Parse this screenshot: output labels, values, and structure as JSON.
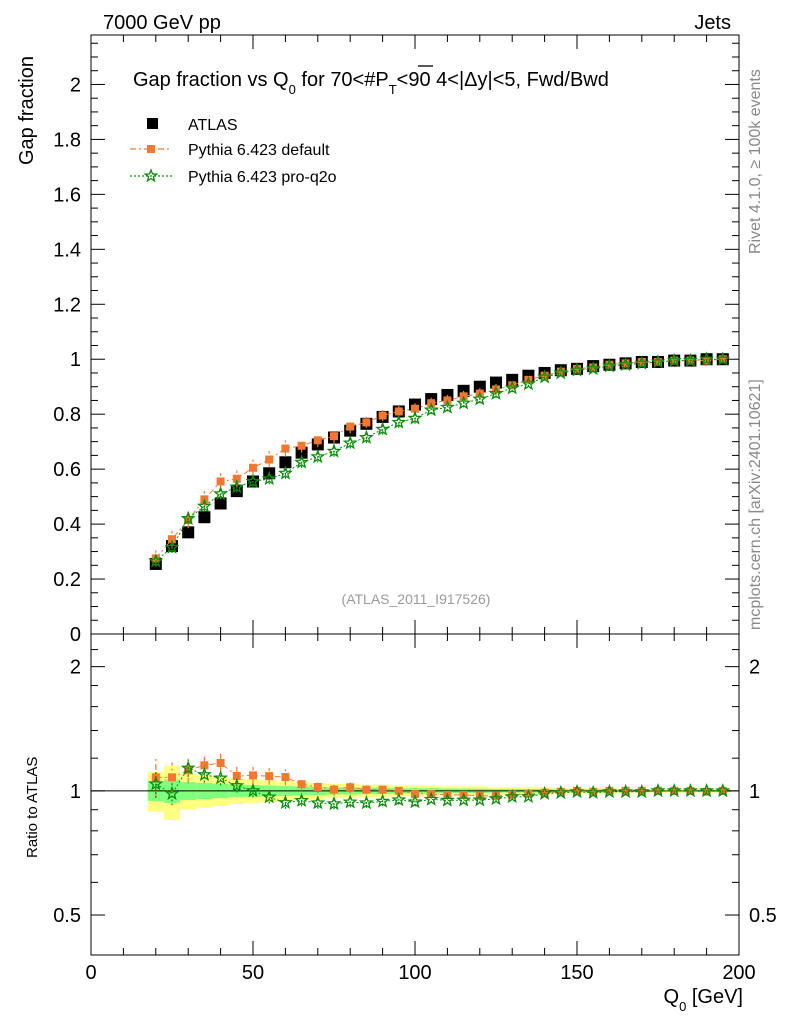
{
  "header": {
    "left": "7000 GeV pp",
    "right": "Jets"
  },
  "side_labels": {
    "rivet": "Rivet 4.1.0, ≥ 100k events",
    "mcplots": "mcplots.cern.ch [arXiv:2401.10621]"
  },
  "colors": {
    "atlas": "#000000",
    "default": "#f07830",
    "proq2o": "#0a8c0a",
    "band_yellow": "#ffff80",
    "band_green": "#80ff80"
  },
  "chart_data": [
    {
      "type": "scatter",
      "panel": "main",
      "title_parts": {
        "before": "Gap fraction vs Q",
        "sub0": "0",
        "mid": " for 70<#",
        "p": "P",
        "subT": "T",
        "after": "<90  4<|Δy|<5, Fwd/Bwd"
      },
      "ylabel": "Gap fraction",
      "xlabel": "Q",
      "xlabel_sub": "0",
      "xlabel_unit": " [GeV]",
      "watermark": "(ATLAS_2011_I917526)",
      "xlim": [
        0,
        200
      ],
      "ylim": [
        0,
        2.18
      ],
      "yticks": [
        "0",
        "0.2",
        "0.4",
        "0.6",
        "0.8",
        "1",
        "1.2",
        "1.4",
        "1.6",
        "1.8",
        "2"
      ],
      "xticks": [
        "0",
        "50",
        "100",
        "150",
        "200"
      ],
      "legend": [
        "ATLAS",
        "Pythia 6.423 default",
        "Pythia 6.423 pro-q2o"
      ],
      "x": [
        20,
        25,
        30,
        35,
        40,
        45,
        50,
        55,
        60,
        65,
        70,
        75,
        80,
        85,
        90,
        95,
        100,
        105,
        110,
        115,
        120,
        125,
        130,
        135,
        140,
        145,
        150,
        155,
        160,
        165,
        170,
        175,
        180,
        185,
        190,
        195
      ],
      "series": [
        {
          "name": "ATLAS",
          "values": [
            0.255,
            0.32,
            0.37,
            0.425,
            0.475,
            0.52,
            0.555,
            0.585,
            0.625,
            0.66,
            0.69,
            0.715,
            0.74,
            0.765,
            0.79,
            0.81,
            0.835,
            0.855,
            0.87,
            0.885,
            0.9,
            0.915,
            0.925,
            0.94,
            0.95,
            0.96,
            0.965,
            0.975,
            0.98,
            0.985,
            0.99,
            0.99,
            0.995,
            0.995,
            1.0,
            1.0
          ],
          "err": [
            0.01,
            0.01,
            0.01,
            0.01,
            0.01,
            0.01,
            0.01,
            0.01,
            0.01,
            0.01,
            0.01,
            0.01,
            0.01,
            0.01,
            0.01,
            0.01,
            0.01,
            0.01,
            0.01,
            0.01,
            0.01,
            0.01,
            0.01,
            0.01,
            0.01,
            0.01,
            0.01,
            0.01,
            0.01,
            0.01,
            0.01,
            0.01,
            0.01,
            0.01,
            0.01,
            0.01
          ]
        },
        {
          "name": "Pythia 6.423 default",
          "values": [
            0.275,
            0.345,
            0.415,
            0.49,
            0.555,
            0.565,
            0.605,
            0.635,
            0.675,
            0.685,
            0.705,
            0.72,
            0.755,
            0.77,
            0.795,
            0.81,
            0.82,
            0.84,
            0.85,
            0.865,
            0.875,
            0.89,
            0.905,
            0.925,
            0.94,
            0.955,
            0.965,
            0.97,
            0.98,
            0.985,
            0.99,
            0.99,
            0.995,
            0.995,
            0.995,
            1.0
          ],
          "err": [
            0.03,
            0.03,
            0.03,
            0.03,
            0.03,
            0.03,
            0.03,
            0.03,
            0.03,
            0.025,
            0.025,
            0.025,
            0.025,
            0.02,
            0.02,
            0.02,
            0.02,
            0.02,
            0.02,
            0.02,
            0.02,
            0.02,
            0.015,
            0.015,
            0.015,
            0.015,
            0.01,
            0.01,
            0.01,
            0.01,
            0.01,
            0.01,
            0.01,
            0.01,
            0.01,
            0.01
          ]
        },
        {
          "name": "Pythia 6.423 pro-q2o",
          "values": [
            0.265,
            0.315,
            0.42,
            0.465,
            0.51,
            0.535,
            0.555,
            0.565,
            0.585,
            0.625,
            0.645,
            0.665,
            0.695,
            0.715,
            0.745,
            0.77,
            0.785,
            0.815,
            0.825,
            0.84,
            0.855,
            0.875,
            0.895,
            0.91,
            0.935,
            0.95,
            0.96,
            0.965,
            0.975,
            0.98,
            0.985,
            0.99,
            0.995,
            0.995,
            1.0,
            1.0
          ],
          "err": [
            0.02,
            0.02,
            0.02,
            0.02,
            0.02,
            0.02,
            0.02,
            0.02,
            0.02,
            0.02,
            0.02,
            0.02,
            0.02,
            0.02,
            0.02,
            0.02,
            0.02,
            0.015,
            0.015,
            0.015,
            0.015,
            0.015,
            0.015,
            0.01,
            0.01,
            0.01,
            0.01,
            0.01,
            0.01,
            0.01,
            0.01,
            0.01,
            0.01,
            0.01,
            0.01,
            0.01
          ]
        }
      ]
    },
    {
      "type": "scatter",
      "panel": "ratio",
      "ylabel": "Ratio to ATLAS",
      "yscale": "log",
      "ylim": [
        0.4,
        2.4
      ],
      "yticks": [
        "0.5",
        "1",
        "2"
      ],
      "yticks_values": [
        0.5,
        1,
        2
      ],
      "band_yellow": [
        0.11,
        0.15,
        0.1,
        0.09,
        0.08,
        0.07,
        0.065,
        0.06,
        0.055,
        0.05,
        0.045,
        0.04,
        0.04,
        0.035,
        0.035,
        0.03,
        0.03,
        0.03,
        0.025,
        0.025,
        0.025,
        0.02,
        0.02,
        0.02,
        0.02,
        0.015,
        0.015,
        0.015,
        0.015,
        0.01,
        0.01,
        0.01,
        0.01,
        0.01,
        0.01,
        0.01
      ],
      "band_green": [
        0.055,
        0.065,
        0.05,
        0.045,
        0.04,
        0.035,
        0.033,
        0.03,
        0.028,
        0.025,
        0.023,
        0.02,
        0.02,
        0.018,
        0.018,
        0.015,
        0.015,
        0.015,
        0.013,
        0.013,
        0.012,
        0.01,
        0.01,
        0.01,
        0.01,
        0.008,
        0.008,
        0.008,
        0.008,
        0.006,
        0.006,
        0.006,
        0.006,
        0.006,
        0.006,
        0.006
      ]
    }
  ]
}
